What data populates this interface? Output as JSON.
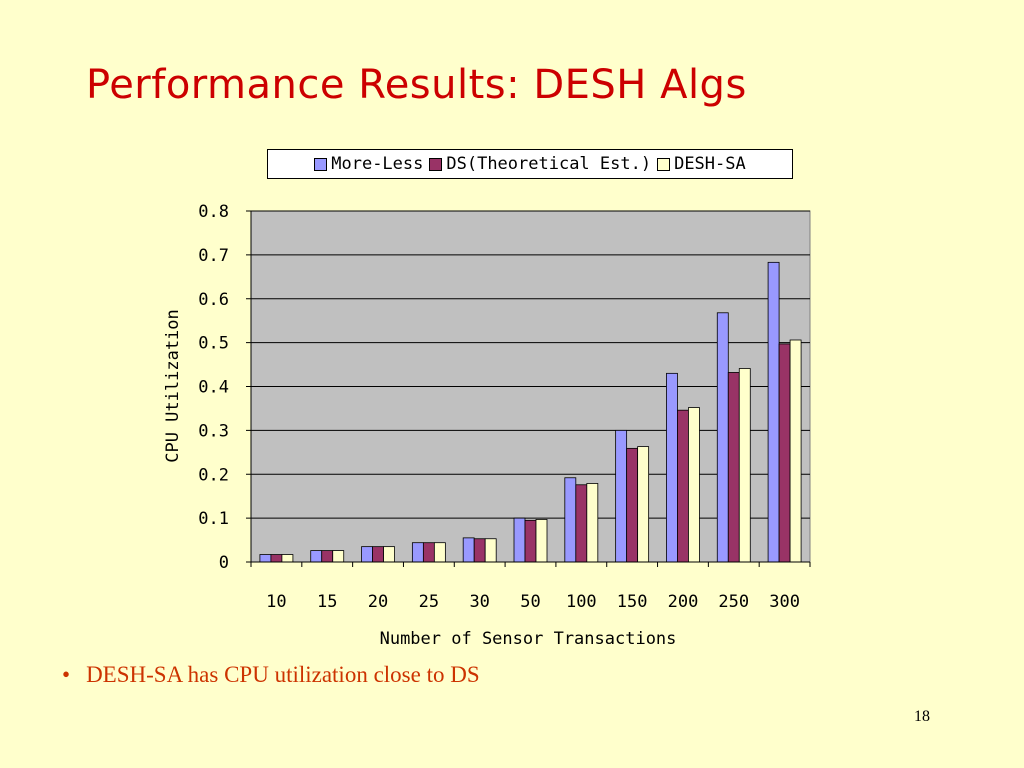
{
  "slide": {
    "title": "Performance Results: DESH Algs",
    "bullet_mark": "•",
    "bullet": "DESH-SA has CPU utilization close to DS",
    "page_number": "18"
  },
  "chart_data": {
    "type": "bar",
    "title": "",
    "xlabel": "Number of Sensor Transactions",
    "ylabel": "CPU Utilization",
    "ylim": [
      0,
      0.8
    ],
    "yticks": [
      0,
      0.1,
      0.2,
      0.3,
      0.4,
      0.5,
      0.6,
      0.7,
      0.8
    ],
    "ytick_labels": [
      "0",
      "0.1",
      "0.2",
      "0.3",
      "0.4",
      "0.5",
      "0.6",
      "0.7",
      "0.8"
    ],
    "grid": true,
    "legend_position": "top",
    "plot_background": "#c0c0c0",
    "categories": [
      "10",
      "15",
      "20",
      "25",
      "30",
      "50",
      "100",
      "150",
      "200",
      "250",
      "300"
    ],
    "series": [
      {
        "name": "More-Less",
        "color": "#9999ff",
        "values": [
          0.017,
          0.026,
          0.035,
          0.044,
          0.055,
          0.1,
          0.192,
          0.3,
          0.43,
          0.568,
          0.683
        ]
      },
      {
        "name": "DS(Theoretical Est.)",
        "color": "#993366",
        "values": [
          0.017,
          0.026,
          0.035,
          0.044,
          0.053,
          0.095,
          0.176,
          0.259,
          0.346,
          0.432,
          0.497
        ]
      },
      {
        "name": "DESH-SA",
        "color": "#ffffcc",
        "values": [
          0.017,
          0.026,
          0.035,
          0.044,
          0.053,
          0.097,
          0.179,
          0.263,
          0.352,
          0.441,
          0.506
        ]
      }
    ]
  }
}
